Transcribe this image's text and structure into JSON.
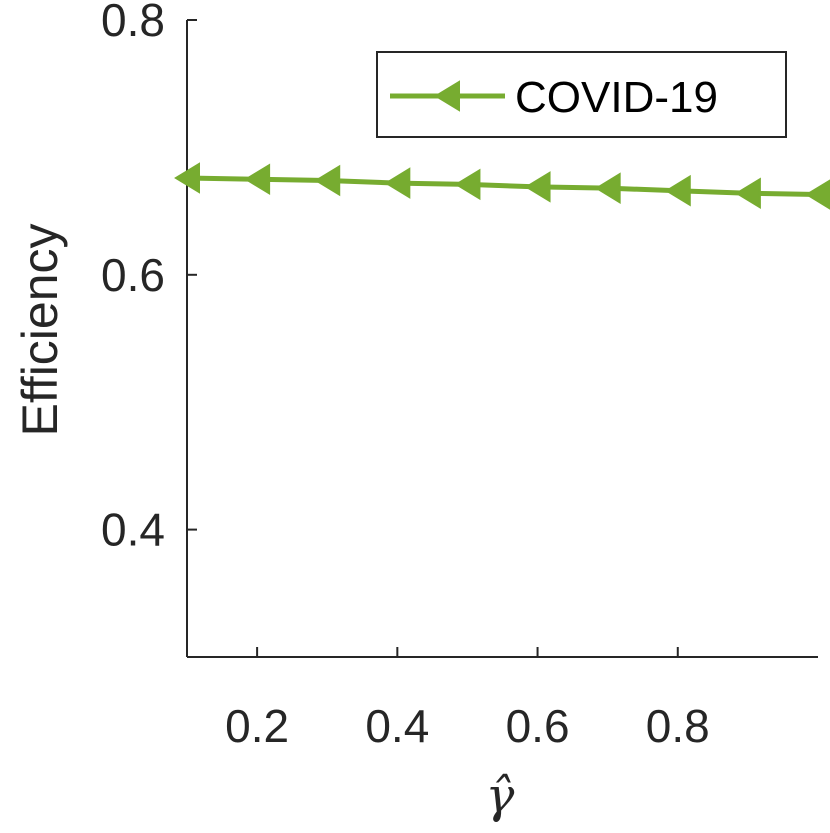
{
  "chart_data": {
    "type": "line",
    "title": "",
    "xlabel": "γ̂",
    "ylabel": "Efficiency",
    "xlim": [
      0.1,
      1.0
    ],
    "ylim": [
      0.3,
      0.8
    ],
    "xticks": [
      0.2,
      0.4,
      0.6,
      0.8
    ],
    "xtick_labels": [
      "0.2",
      "0.4",
      "0.6",
      "0.8"
    ],
    "yticks": [
      0.4,
      0.6,
      0.8
    ],
    "ytick_labels": [
      "0.4",
      "0.6",
      "0.8"
    ],
    "grid": false,
    "legend_position": "top-right",
    "series": [
      {
        "name": "COVID-19",
        "color": "#77AC30",
        "marker": "left-triangle",
        "x": [
          0.1,
          0.2,
          0.3,
          0.4,
          0.5,
          0.6,
          0.7,
          0.8,
          0.9,
          1.0
        ],
        "y": [
          0.676,
          0.675,
          0.674,
          0.672,
          0.671,
          0.669,
          0.668,
          0.666,
          0.664,
          0.663
        ]
      }
    ]
  }
}
